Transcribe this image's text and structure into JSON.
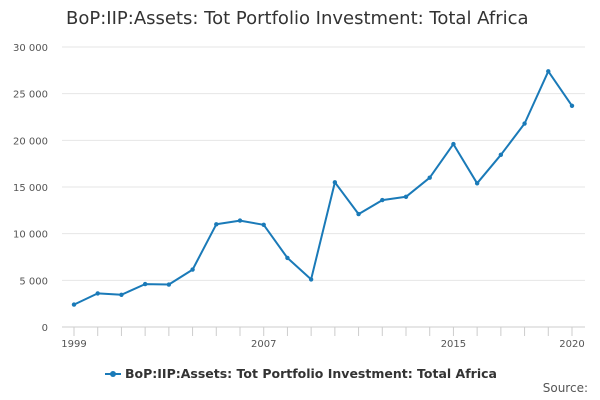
{
  "chart_data": {
    "type": "line",
    "title": "BoP:IIP:Assets: Tot Portfolio Investment: Total Africa",
    "xlabel": "",
    "ylabel": "",
    "ylim": [
      0,
      30000
    ],
    "xlim": [
      1999,
      2020
    ],
    "y_ticks": [
      0,
      5000,
      10000,
      15000,
      20000,
      25000,
      30000
    ],
    "y_tick_labels": [
      "0",
      "5 000",
      "10 000",
      "15 000",
      "20 000",
      "25 000",
      "30 000"
    ],
    "x_tick_labels": [
      {
        "year": 1999,
        "label": "1999"
      },
      {
        "year": 2007,
        "label": "2007"
      },
      {
        "year": 2015,
        "label": "2015"
      },
      {
        "year": 2020,
        "label": "2020"
      }
    ],
    "grid": true,
    "series": [
      {
        "name": "BoP:IIP:Assets: Tot Portfolio Investment: Total Africa",
        "color": "#1a7ab8",
        "x": [
          1999,
          2000,
          2001,
          2002,
          2003,
          2004,
          2005,
          2006,
          2007,
          2008,
          2009,
          2010,
          2011,
          2012,
          2013,
          2014,
          2015,
          2016,
          2017,
          2018,
          2019,
          2020
        ],
        "values": [
          2400,
          3600,
          3450,
          4600,
          4550,
          6150,
          11000,
          11400,
          10950,
          7400,
          5100,
          15500,
          12100,
          13600,
          13950,
          16000,
          19600,
          15400,
          18450,
          21800,
          27400,
          23700
        ]
      }
    ]
  },
  "legend": {
    "label": "BoP:IIP:Assets: Tot Portfolio Investment: Total Africa"
  },
  "source_label": "Source:"
}
